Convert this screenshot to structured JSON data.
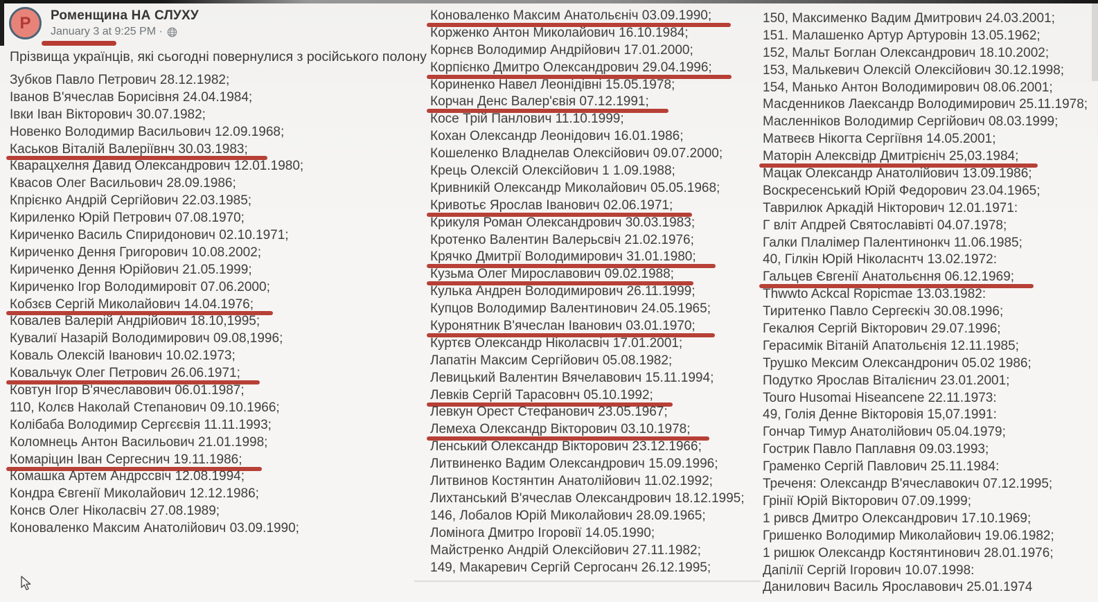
{
  "header": {
    "page_name": "Роменщина НА СЛУХУ",
    "timestamp": "January 3 at 9:25 PM ·",
    "avatar_letter": "P"
  },
  "post": {
    "intro": "Прізвища українців, які сьогодні повернулися з російського полону"
  },
  "colors": {
    "underline-red": "#b23128",
    "text-color": "#3e3e3e",
    "avatar-fill": "#e8837a",
    "avatar-ring": "#4d6677",
    "avatar-letter": "#b03a31"
  },
  "columns": [
    {
      "entries": [
        {
          "t": "Зубков Павло Петрович 28.12.1982;",
          "u": false
        },
        {
          "t": "Іванов В'ячеслав Борисівня 24.04.1984;",
          "u": false
        },
        {
          "t": "Івки Іван Вікторович 30.07.1982;",
          "u": false
        },
        {
          "t": "Новенко Володимир Васильович 12.09.1968;",
          "u": false
        },
        {
          "t": "Каськов Віталій Валеріївнч 30.03.1983;",
          "u": true
        },
        {
          "t": "Кварацхелня Давид Олександрович 12.01.1980;",
          "u": false
        },
        {
          "t": "Квасов Олег Васильович 28.09.1986;",
          "u": false
        },
        {
          "t": "Кпрієнко Андрій Сергійович 22.03.1985;",
          "u": false
        },
        {
          "t": "Кириленко Юрій Петрович 07.08.1970;",
          "u": false
        },
        {
          "t": "Кириченко Василь Спиридонович 02.10.1971;",
          "u": false
        },
        {
          "t": "Кириченко Дення Григорович 10.08.2002;",
          "u": false
        },
        {
          "t": "Кириченко Дення Юрійович 21.05.1999;",
          "u": false
        },
        {
          "t": "Кириченко Ігор Володимировіт 07.06.2000;",
          "u": false
        },
        {
          "t": "Кобзєв Сергій Миколайович 14.04.1976;",
          "u": true
        },
        {
          "t": "Ковалев Валерій Андрійович 18.10,1995;",
          "u": false
        },
        {
          "t": "Кувалиї Назарій Володимирович 09.08,1996;",
          "u": false
        },
        {
          "t": "Коваль Олексій Іванович 10.02.1973;",
          "u": false
        },
        {
          "t": "Ковальчук Олег Петрович 26.06.1971;",
          "u": true
        },
        {
          "t": "Ковтун Ігор В'ячеславович 06.01.1987;",
          "u": false
        },
        {
          "t": "110, Колєв Наколай Степанович 09.10.1966;",
          "u": false
        },
        {
          "t": "Колібаба Володимир Сергєєвія 11.11.1993;",
          "u": false
        },
        {
          "t": "Коломнець Антон Васильович 21.01.1998;",
          "u": false
        },
        {
          "t": "Комаріцин Іван Сергеснич 19.11.1986;",
          "u": true
        },
        {
          "t": "Комашка Артем Андрссвіч 12.08.1994;",
          "u": false
        },
        {
          "t": "Кондра Євгенії Миколайович 12.12.1986;",
          "u": false
        },
        {
          "t": "Консв Олег Ніколасвіч 27.08.1989;",
          "u": false
        },
        {
          "t": "Коноваленко Максим Анатолійович 03.09.1990;",
          "u": false
        }
      ]
    },
    {
      "entries": [
        {
          "t": "Коноваленко Максим Анатольєніч 03.09.1990;",
          "u": true
        },
        {
          "t": "Корженко Антон Миколайович 16.10.1984;",
          "u": false
        },
        {
          "t": "Корнєв Володимир Андрійович 17.01.2000;",
          "u": false
        },
        {
          "t": "Корпієнко Дмитро Олександрович 29.04.1996;",
          "u": true
        },
        {
          "t": "Кориненко Навел Леонідівні 15.05.1978;",
          "u": false
        },
        {
          "t": "Корчан Денс Валер'євія 07.12.1991;",
          "u": true
        },
        {
          "t": "Косе Трій Панлович 11.10.1999;",
          "u": false
        },
        {
          "t": "Кохан Олександр Леонідович 16.01.1986;",
          "u": false
        },
        {
          "t": "Кошеленко Владнелав Олексійович 09.07.2000;",
          "u": false
        },
        {
          "t": "Крець Олексій Олексійович 1 1.09.1988;",
          "u": false
        },
        {
          "t": "Кривникій Олександр Миколайович 05.05.1968;",
          "u": false
        },
        {
          "t": "Кривотьє Ярослав Іванович 02.06.1971;",
          "u": true
        },
        {
          "t": "Крикуля Роман Олександрович 30.03.1983;",
          "u": false
        },
        {
          "t": "Кротенко Валентин Валерьсвіч 21.02.1976;",
          "u": false
        },
        {
          "t": "Крячко Дмитрії Володимирович 31.01.1980;",
          "u": true
        },
        {
          "t": "Кузьма Олег Мирославович 09.02.1988;",
          "u": true
        },
        {
          "t": "Кулька Андрен Володимирович 26.11.1999;",
          "u": false
        },
        {
          "t": "Купцов Володимир Валентинович 24.05.1965;",
          "u": false
        },
        {
          "t": "Куронятник В'ячеслан Іванович 03.01.1970;",
          "u": true
        },
        {
          "t": "Куртєв Олександр Ніколасвіч 17.01.2001;",
          "u": false
        },
        {
          "t": "Лапатін Максим Сергійович 05.08.1982;",
          "u": false
        },
        {
          "t": "Левицький Валентин Вячелавович 15.11.1994;",
          "u": false
        },
        {
          "t": "Левків Сергій Тарасовнч 05.10.1992;",
          "u": true
        },
        {
          "t": "Левкун Орест Стефанович 23.05.1967;",
          "u": false
        },
        {
          "t": "Лемеха Олександр Вікторович 03.10.1978;",
          "u": true
        },
        {
          "t": "Ленський Олександр Вікторович 23.12.1966;",
          "u": false
        },
        {
          "t": "Литвиненко Вадим Олександрович 15.09.1996;",
          "u": false
        },
        {
          "t": "Литвинов Костянтин Анатолійович 11.02.1992;",
          "u": false
        },
        {
          "t": "Лихтанський В'ячеслав Олександрович 18.12.1995;",
          "u": false
        },
        {
          "t": "146, Лобалов Юрій Миколайович 28.09.1965;",
          "u": false
        },
        {
          "t": "Ломінога Дмитро Ігоровії 14.05.1990;",
          "u": false
        },
        {
          "t": "Майстренко Андрій Олексійович 27.11.1982;",
          "u": false
        },
        {
          "t": "149, Макаревич Сергій Сергосанч 26.12.1995;",
          "u": false
        }
      ]
    },
    {
      "entries": [
        {
          "t": "150, Максименко Вадим Дмитрович 24.03.2001;",
          "u": false
        },
        {
          "t": "151. Малашенко Артур Артуровін 13.05.1962;",
          "u": false
        },
        {
          "t": "152, Мальт Боглан Олександрович 18.10.2002;",
          "u": false
        },
        {
          "t": "153, Малькевич Олексій Олексійович 30.12.1998;",
          "u": false
        },
        {
          "t": "154, Манько Антон Володимирович 08.06.2001;",
          "u": false
        },
        {
          "t": "Масденников Лаександр Володимирович 25.11.1978;",
          "u": false
        },
        {
          "t": "Масленніков Володимир Сергійович 08.03.1999;",
          "u": false
        },
        {
          "t": "Матвеєв Нікогта Сергіївня 14.05.2001;",
          "u": false
        },
        {
          "t": "Маторін Алексвідр Дмитрієніч 25,03.1984;",
          "u": true
        },
        {
          "t": "Мацак Олександр Анатолійович 13.09.1986;",
          "u": false
        },
        {
          "t": "Воскресенський Юрій Федорович 23.04.1965;",
          "u": false
        },
        {
          "t": "Таврилюк Аркадій Нікторович 12.01.1971:",
          "u": false
        },
        {
          "t": "Г вліт Апдрей Святославівті 04.07.1978;",
          "u": false
        },
        {
          "t": "Галки Плалімер Палентинонкч 11.06.1985;",
          "u": false
        },
        {
          "t": "40, Гілкін Юрій Ніколаснтч 13.02.1972:",
          "u": false
        },
        {
          "t": "Гальцев Євгенії Анатольєння 06.12.1969;",
          "u": true
        },
        {
          "t": "Thwwto Ackcal Ropicmae 13.03.1982:",
          "u": false
        },
        {
          "t": "Тиритенко Павло Сергеєкіч 30.08.1996;",
          "u": false
        },
        {
          "t": "Гекалюя Сергій Вікторович 29.07.1996;",
          "u": false
        },
        {
          "t": "Герасимік Вітаній Апатольєнія 12.11.1985;",
          "u": false
        },
        {
          "t": "Трушко Мексим Олександронич 05.02 1986;",
          "u": false
        },
        {
          "t": "Подутко Ярослав Віталієнич 23.01.2001;",
          "u": false
        },
        {
          "t": "Touro Husomai Hiseancene 22.11.1973:",
          "u": false
        },
        {
          "t": "49, Голія Денне Вікторовія 15,07.1991:",
          "u": false
        },
        {
          "t": "Гончар Тимур Анатолійович 05.04.1979;",
          "u": false
        },
        {
          "t": "Гострик Павло Паплавня 09.03.1993;",
          "u": false
        },
        {
          "t": "Граменко Сергій Павлович 25.11.1984:",
          "u": false
        },
        {
          "t": "Треченя: Олександр В'ячеславокич 07.12.1995;",
          "u": false
        },
        {
          "t": "Грінії Юрій Вікторович 07.09.1999;",
          "u": false
        },
        {
          "t": "1 ривсв Дмитро Олександрович 17.10.1969;",
          "u": false
        },
        {
          "t": "Гришенко Володимир Миколайович 19.06.1982;",
          "u": false
        },
        {
          "t": "1 ришюк Олександр Костянтинович 28.01.1976;",
          "u": false
        },
        {
          "t": "Дапілії Сергій Ігорович 10.07.1998:",
          "u": false
        },
        {
          "t": "Данилович Василь Ярославович 25.01.1974",
          "u": false
        }
      ]
    }
  ]
}
